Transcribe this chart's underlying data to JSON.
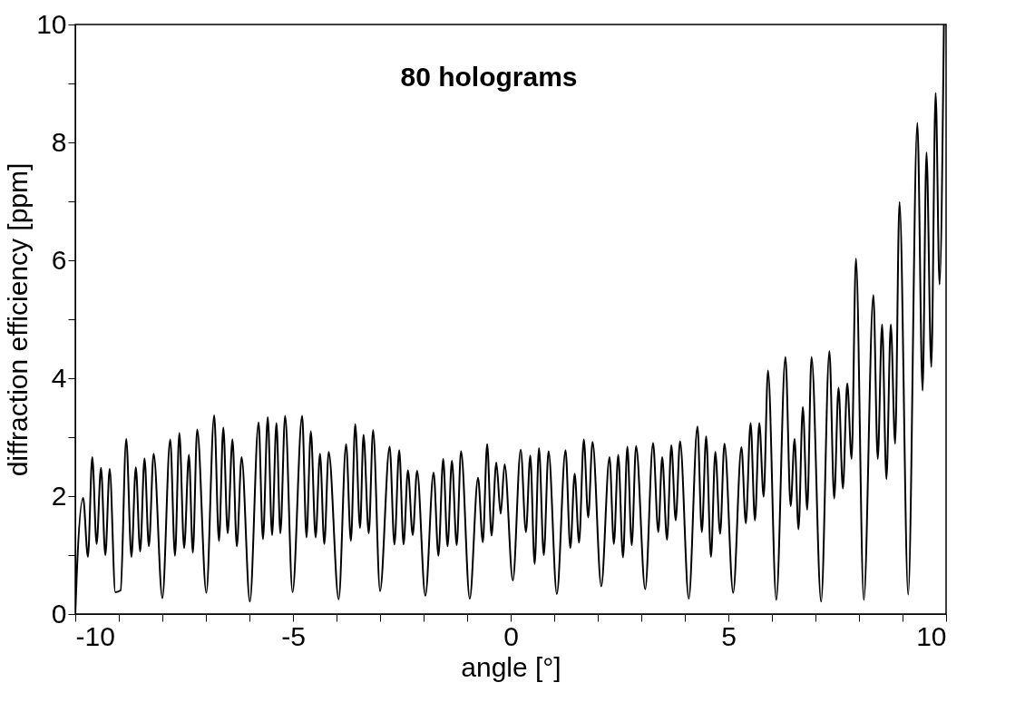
{
  "chart_data": {
    "type": "line",
    "xlabel": "angle [°]",
    "ylabel": "diffraction efficiency [ppm]",
    "annotations": [
      "80 holograms"
    ],
    "xlim": [
      -10,
      10
    ],
    "ylim": [
      0,
      10
    ],
    "xticks": [
      -10,
      {
        "value": -9,
        "label": null
      },
      {
        "value": -8,
        "label": null
      },
      {
        "value": -7,
        "label": null
      },
      {
        "value": -6,
        "label": null
      },
      -5,
      {
        "value": -4,
        "label": null
      },
      {
        "value": -3,
        "label": null
      },
      {
        "value": -2,
        "label": null
      },
      {
        "value": -1,
        "label": null
      },
      0,
      {
        "value": 1,
        "label": null
      },
      {
        "value": 2,
        "label": null
      },
      {
        "value": 3,
        "label": null
      },
      {
        "value": 4,
        "label": null
      },
      5,
      {
        "value": 6,
        "label": null
      },
      {
        "value": 7,
        "label": null
      },
      {
        "value": 8,
        "label": null
      },
      {
        "value": 9,
        "label": null
      },
      10
    ],
    "yticks": [
      0,
      {
        "value": 1,
        "label": null
      },
      2,
      {
        "value": 3,
        "label": null
      },
      4,
      {
        "value": 5,
        "label": null
      },
      6,
      {
        "value": 7,
        "label": null
      },
      8,
      {
        "value": 9,
        "label": null
      },
      10
    ],
    "grid": false,
    "series": [
      {
        "color": "#000000",
        "x": [
          -10,
          -9.97,
          -9.82,
          -9.71,
          -9.61,
          -9.51,
          -9.41,
          -9.31,
          -9.21,
          -9.08,
          -8.96,
          -8.83,
          -8.71,
          -8.61,
          -8.51,
          -8.41,
          -8.31,
          -8.2,
          -8.0,
          -7.82,
          -7.71,
          -7.61,
          -7.5,
          -7.39,
          -7.3,
          -7.2,
          -6.99,
          -6.81,
          -6.7,
          -6.6,
          -6.5,
          -6.39,
          -6.29,
          -6.18,
          -5.99,
          -5.79,
          -5.69,
          -5.58,
          -5.48,
          -5.38,
          -5.29,
          -5.18,
          -5.01,
          -4.79,
          -4.69,
          -4.59,
          -4.48,
          -4.38,
          -4.28,
          -4.18,
          -3.95,
          -3.78,
          -3.67,
          -3.57,
          -3.46,
          -3.38,
          -3.26,
          -3.16,
          -3.0,
          -2.78,
          -2.67,
          -2.56,
          -2.46,
          -2.36,
          -2.25,
          -2.15,
          -1.96,
          -1.77,
          -1.66,
          -1.55,
          -1.45,
          -1.35,
          -1.24,
          -1.14,
          -0.94,
          -0.75,
          -0.64,
          -0.54,
          -0.44,
          -0.33,
          -0.23,
          -0.14,
          0.05,
          0.23,
          0.35,
          0.45,
          0.55,
          0.65,
          0.76,
          0.87,
          1.06,
          1.26,
          1.37,
          1.47,
          1.57,
          1.68,
          1.78,
          1.88,
          2.08,
          2.27,
          2.37,
          2.47,
          2.58,
          2.68,
          2.78,
          2.88,
          3.09,
          3.27,
          3.39,
          3.48,
          3.59,
          3.69,
          3.79,
          3.89,
          4.09,
          4.29,
          4.39,
          4.49,
          4.6,
          4.7,
          4.81,
          4.91,
          5.11,
          5.3,
          5.4,
          5.51,
          5.61,
          5.71,
          5.81,
          5.91,
          6.1,
          6.31,
          6.43,
          6.52,
          6.61,
          6.71,
          6.81,
          6.91,
          7.13,
          7.32,
          7.43,
          7.53,
          7.63,
          7.73,
          7.83,
          7.93,
          8.11,
          8.33,
          8.43,
          8.53,
          8.63,
          8.73,
          8.83,
          8.93,
          9.13,
          9.34,
          9.46,
          9.55,
          9.66,
          9.76,
          9.85,
          9.95
        ],
        "values": [
          0,
          0.6,
          1.97,
          0.97,
          2.66,
          1.19,
          2.48,
          1.0,
          2.46,
          0.37,
          0.4,
          2.97,
          0.97,
          2.49,
          1.06,
          2.64,
          1.15,
          2.72,
          0.27,
          2.96,
          0.99,
          3.07,
          1.12,
          2.7,
          1.04,
          3.13,
          0.36,
          3.37,
          1.24,
          3.16,
          1.37,
          2.96,
          1.15,
          2.66,
          0.21,
          3.25,
          1.27,
          3.34,
          1.34,
          3.24,
          1.37,
          3.36,
          0.37,
          3.36,
          1.3,
          3.1,
          1.3,
          2.72,
          1.19,
          2.75,
          0.25,
          2.88,
          1.24,
          3.22,
          1.46,
          3.04,
          1.37,
          3.12,
          0.39,
          2.84,
          1.18,
          2.78,
          1.18,
          2.44,
          1.34,
          2.43,
          0.31,
          2.4,
          0.99,
          2.63,
          1.15,
          2.6,
          1.17,
          2.76,
          0.26,
          2.31,
          1.22,
          2.88,
          1.33,
          2.57,
          1.7,
          2.54,
          0.57,
          2.79,
          1.39,
          2.69,
          0.85,
          2.81,
          1.0,
          2.76,
          0.34,
          2.78,
          1.12,
          2.38,
          1.21,
          2.96,
          1.64,
          2.92,
          0.47,
          2.66,
          1.19,
          2.7,
          0.96,
          2.84,
          1.17,
          2.85,
          0.42,
          2.9,
          1.39,
          2.66,
          1.26,
          2.86,
          1.59,
          2.93,
          0.26,
          3.18,
          1.39,
          3.01,
          0.97,
          2.75,
          1.36,
          2.89,
          0.36,
          2.83,
          1.54,
          3.24,
          1.59,
          3.24,
          1.99,
          4.13,
          0.24,
          4.36,
          1.83,
          2.97,
          1.44,
          3.51,
          1.77,
          4.36,
          0.21,
          4.46,
          1.96,
          3.84,
          2.13,
          3.91,
          2.63,
          6.03,
          0.24,
          5.41,
          2.63,
          4.91,
          2.29,
          4.91,
          2.89,
          6.99,
          0.33,
          8.33,
          3.79,
          7.83,
          4.19,
          8.84,
          5.59,
          10
        ]
      }
    ]
  }
}
